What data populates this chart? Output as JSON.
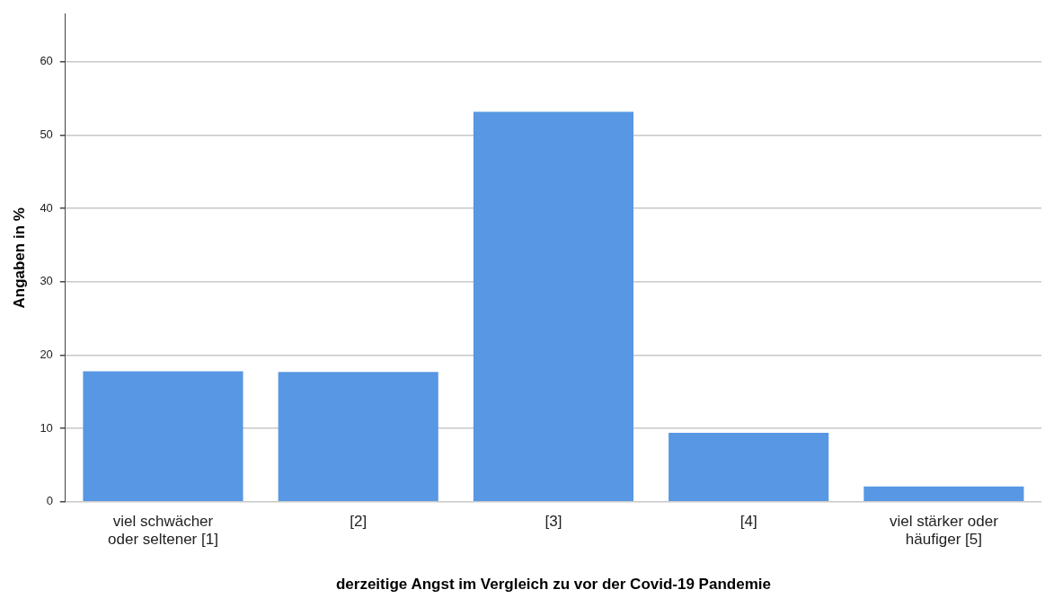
{
  "chart_data": {
    "type": "bar",
    "xlabel": "derzeitige Angst im Vergleich zu vor der Covid-19 Pandemie",
    "ylabel": "Angaben in %",
    "categories": [
      "viel schwächer oder seltener [1]",
      "[2]",
      "[3]",
      "[4]",
      "viel stärker oder häufiger [5]"
    ],
    "values": [
      17.8,
      17.7,
      53.2,
      9.4,
      2.1
    ],
    "color": "#5797e3",
    "ylim": [
      0,
      66.5
    ],
    "yticks": [
      0,
      10,
      20,
      30,
      40,
      50,
      60
    ],
    "grid": "y"
  }
}
